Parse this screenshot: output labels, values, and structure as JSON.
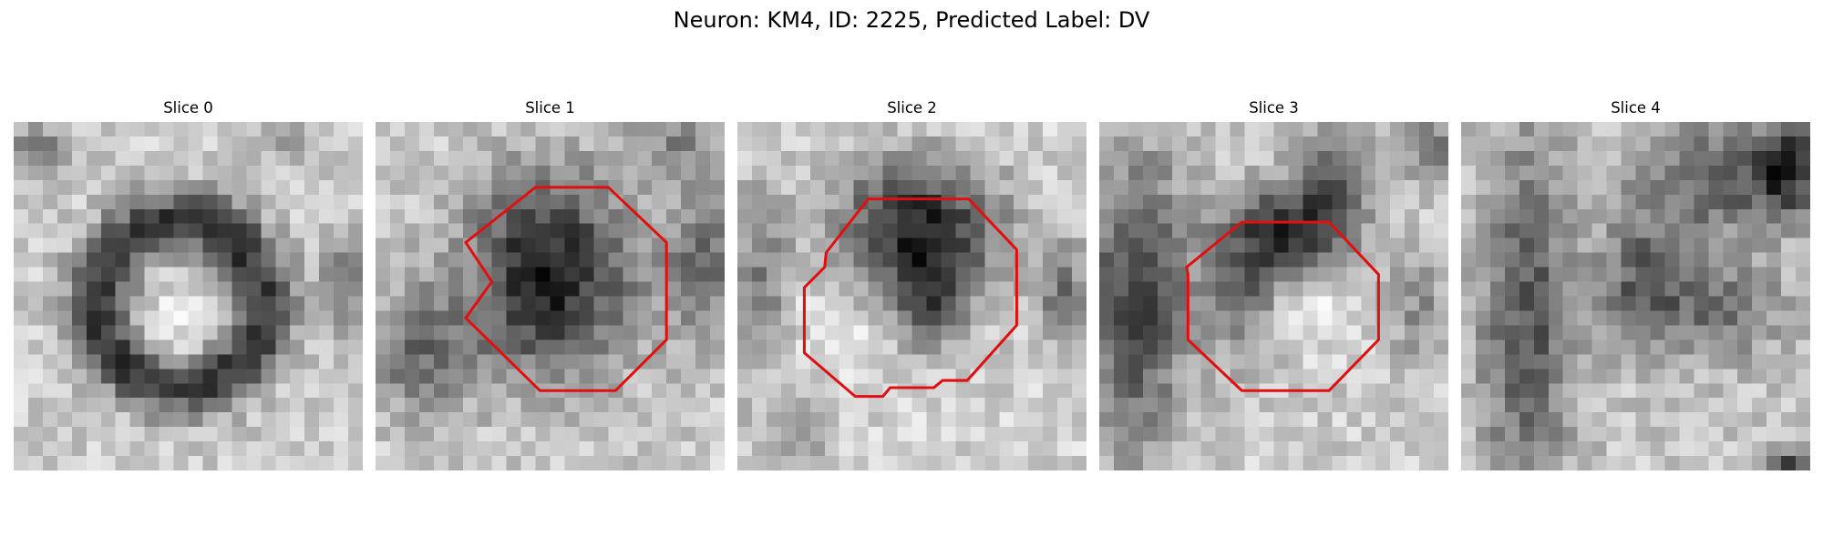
{
  "title": "Neuron: KM4, ID: 2225, Predicted Label: DV",
  "contour_color": "#e01010",
  "panels": [
    {
      "label": "Slice 0",
      "pattern": "ring"
    },
    {
      "label": "Slice 1",
      "pattern": "blob"
    },
    {
      "label": "Slice 2",
      "pattern": "split"
    },
    {
      "label": "Slice 3",
      "pattern": "inner"
    },
    {
      "label": "Slice 4",
      "pattern": "mottled"
    }
  ]
}
